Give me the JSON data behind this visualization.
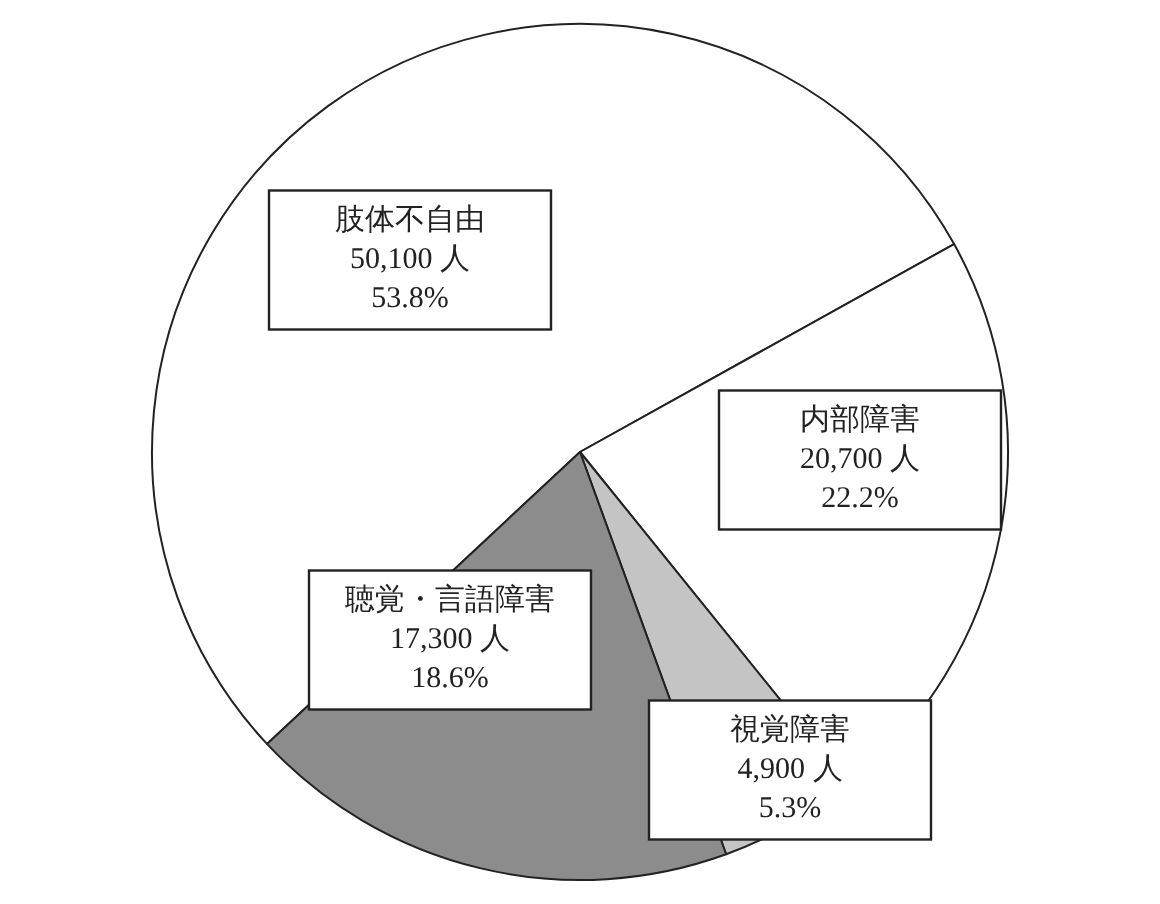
{
  "chart_data": {
    "type": "pie",
    "categories": [
      "肢体不自由",
      "内部障害",
      "視覚障害",
      "聴覚・言語障害"
    ],
    "values": [
      50100,
      20700,
      4900,
      17300
    ],
    "colors": [
      "#ffffff",
      "#ffffff",
      "#c4c4c4",
      "#8c8c8c"
    ],
    "value_labels": [
      "50,100 人\n53.8%",
      "20,700 人\n22.2%",
      "4,900 人\n5.3%",
      "17,300 人\n18.6%"
    ]
  }
}
